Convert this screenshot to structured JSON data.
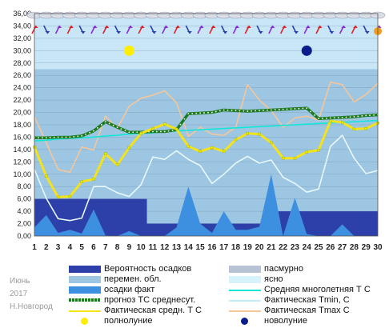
{
  "chart_data": {
    "type": "line",
    "x": [
      1,
      2,
      3,
      4,
      5,
      6,
      7,
      8,
      9,
      10,
      11,
      12,
      13,
      14,
      15,
      16,
      17,
      18,
      19,
      20,
      21,
      22,
      23,
      24,
      25,
      26,
      27,
      28,
      29,
      30
    ],
    "ylim": [
      0,
      36
    ],
    "ytick_labels": [
      "0,00",
      "2,00",
      "4,00",
      "6,00",
      "8,00",
      "10,00",
      "12,00",
      "14,00",
      "16,00",
      "18,00",
      "20,00",
      "22,00",
      "24,00",
      "26,00",
      "28,00",
      "30,00",
      "32,00",
      "34,00",
      "36,00"
    ],
    "grid": "horizontal",
    "series": [
      {
        "name": "Фактическая средн. Т С",
        "values": [
          14.4,
          9.7,
          6.3,
          6.4,
          8.8,
          9.2,
          13.3,
          11.5,
          14.3,
          16.6,
          17.4,
          18.1,
          17.3,
          14.5,
          13.7,
          14.3,
          13.7,
          15.6,
          16.6,
          16.5,
          15.1,
          12.6,
          12.6,
          13.6,
          13.9,
          18.6,
          18.4,
          17.3,
          17.4,
          18.3
        ]
      },
      {
        "name": "Фактическая Tmin, C",
        "values": [
          10.8,
          6.1,
          2.8,
          2.5,
          2.9,
          8.0,
          8.0,
          7.0,
          6.4,
          8.3,
          12.8,
          12.4,
          13.8,
          12.4,
          11.4,
          8.5,
          10.0,
          11.8,
          12.9,
          11.8,
          12.3,
          9.5,
          8.5,
          7.1,
          7.6,
          14.5,
          16.3,
          12.6,
          10.1,
          10.6
        ]
      },
      {
        "name": "Фактическая Tmax C",
        "values": [
          19.3,
          15.1,
          10.8,
          10.3,
          14.4,
          13.9,
          19.4,
          17.4,
          21.0,
          22.3,
          22.8,
          23.5,
          21.6,
          16.1,
          17.6,
          16.5,
          16.3,
          17.6,
          24.5,
          22.0,
          20.3,
          17.6,
          19.1,
          19.4,
          18.8,
          24.9,
          24.5,
          21.7,
          22.9,
          24.7
        ]
      },
      {
        "name": "прогноз ТС среднесут.",
        "values": [
          15.9,
          15.9,
          16.0,
          16.0,
          16.2,
          17.0,
          18.5,
          17.6,
          16.8,
          16.8,
          16.9,
          16.9,
          17.2,
          19.8,
          19.9,
          20.0,
          20.4,
          20.3,
          20.2,
          20.3,
          20.4,
          20.5,
          20.6,
          20.7,
          19.0,
          19.1,
          19.2,
          19.3,
          19.5,
          19.6
        ]
      },
      {
        "name": "Средняя многолетняя Т С",
        "values": [
          15.4,
          15.5,
          15.7,
          15.8,
          15.9,
          16.0,
          16.2,
          16.3,
          16.5,
          16.6,
          16.7,
          16.9,
          17.0,
          17.1,
          17.2,
          17.3,
          17.4,
          17.5,
          17.6,
          17.7,
          17.8,
          17.9,
          18.0,
          18.1,
          18.2,
          18.3,
          18.4,
          18.5,
          18.6,
          18.7
        ]
      },
      {
        "name": "осадки факт",
        "values": [
          1.4,
          3.4,
          0.5,
          1.0,
          0.4,
          4.3,
          0.1,
          0.0,
          0.8,
          0.0,
          0.0,
          0.0,
          1.4,
          8.0,
          2.0,
          0.5,
          4.0,
          1.0,
          1.0,
          1.5,
          10.0,
          0.0,
          6.2,
          0.3,
          0.0,
          0.0,
          1.9,
          0.0,
          0.0,
          0.0
        ]
      },
      {
        "name": "Вероятность осадков",
        "values": [
          6,
          6,
          6,
          6,
          6,
          6,
          6,
          6,
          6,
          6,
          2,
          2,
          2,
          2,
          2,
          2,
          2,
          2,
          2,
          2,
          4,
          4,
          4,
          4,
          4,
          4,
          4,
          4,
          4,
          4
        ]
      }
    ],
    "sky_bands": [
      {
        "name": "ясно",
        "from": 0,
        "to": 36,
        "color": "#c8e6f5"
      },
      {
        "name": "перемен. обл.",
        "from": 0,
        "to": 27,
        "color": "#9dc6e2"
      }
    ],
    "moon_events": [
      {
        "label": "полнолуние",
        "day": 9,
        "y": 30
      },
      {
        "label": "новолуние",
        "day": 24,
        "y": 30
      }
    ],
    "legend": [
      {
        "label": "Вероятность осадков",
        "kind": "bar",
        "color": "#2d3fa8"
      },
      {
        "label": "пасмурно",
        "kind": "bar",
        "color": "#b7c2d4"
      },
      {
        "label": "перемен. обл.",
        "kind": "bar",
        "color": "#9dc6e2"
      },
      {
        "label": "ясно",
        "kind": "bar",
        "color": "#d6f3fb"
      },
      {
        "label": "осадки факт",
        "kind": "bar",
        "color": "#3d8fe0"
      },
      {
        "label": "Средняя многолетняя Т С",
        "kind": "line",
        "color": "#12e6d8"
      },
      {
        "label": "прогноз ТС среднесут.",
        "kind": "dotline",
        "color": "#1e7a1e"
      },
      {
        "label": "Фактическая Tmin, C",
        "kind": "line",
        "color": "#bfeef6"
      },
      {
        "label": "Фактическая средн. Т С",
        "kind": "line",
        "color": "#f4e21a"
      },
      {
        "label": "Фактическая Tmax C",
        "kind": "line",
        "color": "#f5c69a"
      },
      {
        "label": "полнолуние",
        "kind": "dot",
        "color": "#ffee00"
      },
      {
        "label": "новолуние",
        "kind": "dot",
        "color": "#0a1d8a"
      }
    ]
  },
  "side": {
    "month": "Июнь",
    "year": "2017",
    "city": "Н.Новгород"
  }
}
